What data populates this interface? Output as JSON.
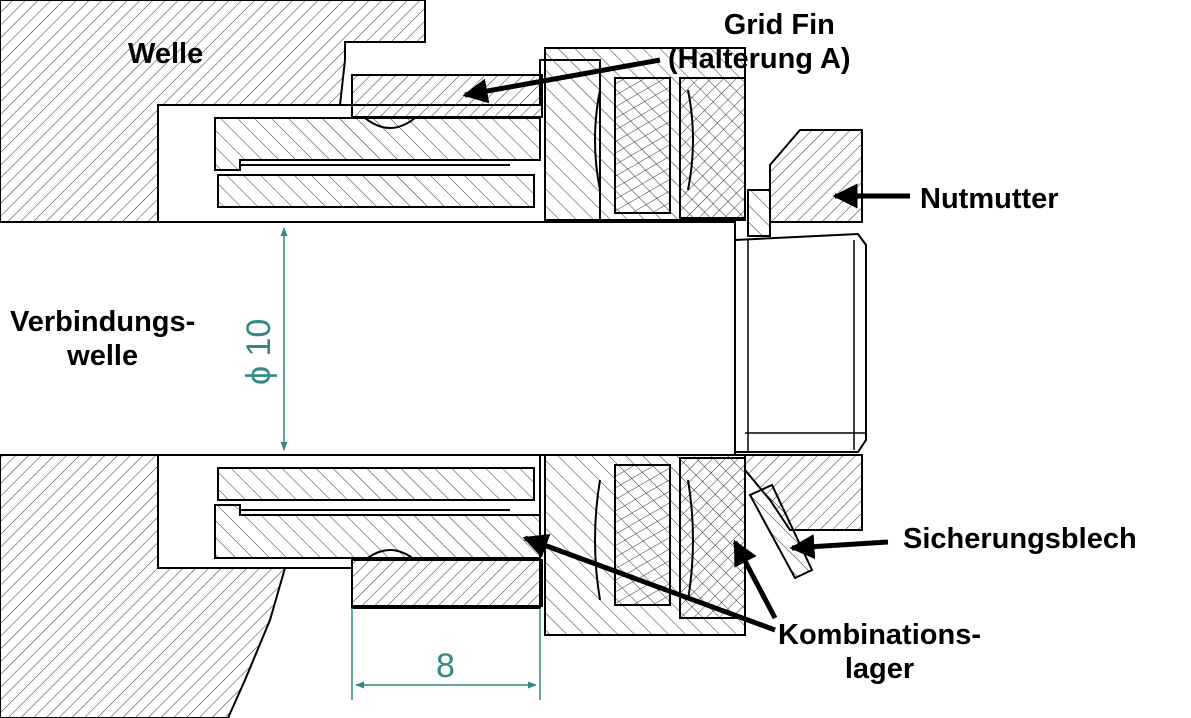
{
  "labels": {
    "welle": "Welle",
    "grid_fin_line1": "Grid Fin",
    "grid_fin_line2": "(Halterung A)",
    "nutmutter": "Nutmutter",
    "verbindungswelle_line1": "Verbindungs-",
    "verbindungswelle_line2": "welle",
    "sicherungsblech": "Sicherungsblech",
    "kombinationslager_line1": "Kombinations-",
    "kombinationslager_line2": "lager"
  },
  "dimensions": {
    "diameter": "ϕ 10",
    "width": "8"
  },
  "colors": {
    "line": "#000000",
    "hatch": "#333333",
    "dimension": "#2e8b84"
  }
}
